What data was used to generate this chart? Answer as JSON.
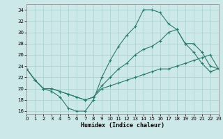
{
  "bg_color": "#cce8e8",
  "grid_color": "#aacfcf",
  "line_color": "#2d7a6e",
  "xlim": [
    0,
    23
  ],
  "ylim": [
    15.5,
    35
  ],
  "yticks": [
    16,
    18,
    20,
    22,
    24,
    26,
    28,
    30,
    32,
    34
  ],
  "xticks": [
    0,
    1,
    2,
    3,
    4,
    5,
    6,
    7,
    8,
    9,
    10,
    11,
    12,
    13,
    14,
    15,
    16,
    17,
    18,
    19,
    20,
    21,
    22,
    23
  ],
  "xlabel": "Humidex (Indice chaleur)",
  "curve1_x": [
    0,
    1,
    2,
    3,
    4,
    5,
    6,
    7,
    8,
    9,
    10,
    11,
    12,
    13,
    14,
    15,
    16,
    17,
    18,
    19,
    20,
    21,
    22,
    23
  ],
  "curve1_y": [
    23.5,
    21.5,
    20.0,
    19.5,
    18.5,
    16.5,
    16.0,
    16.0,
    18.0,
    22.0,
    25.0,
    27.5,
    29.5,
    31.0,
    34.0,
    34.0,
    33.5,
    31.5,
    30.5,
    28.0,
    26.5,
    24.5,
    23.0,
    23.5
  ],
  "curve2_x": [
    0,
    1,
    2,
    3,
    4,
    5,
    6,
    7,
    8,
    9,
    10,
    11,
    12,
    13,
    14,
    15,
    16,
    17,
    18,
    19,
    20,
    21,
    22,
    23
  ],
  "curve2_y": [
    23.5,
    21.5,
    20.0,
    20.0,
    19.5,
    19.0,
    18.5,
    18.0,
    18.5,
    20.5,
    22.0,
    23.5,
    24.5,
    26.0,
    27.0,
    27.5,
    28.5,
    30.0,
    30.5,
    28.0,
    28.0,
    26.5,
    24.0,
    23.5
  ],
  "curve3_x": [
    0,
    1,
    2,
    3,
    4,
    5,
    6,
    7,
    8,
    9,
    10,
    11,
    12,
    13,
    14,
    15,
    16,
    17,
    18,
    19,
    20,
    21,
    22,
    23
  ],
  "curve3_y": [
    23.5,
    21.5,
    20.0,
    20.0,
    19.5,
    19.0,
    18.5,
    18.0,
    18.5,
    20.0,
    20.5,
    21.0,
    21.5,
    22.0,
    22.5,
    23.0,
    23.5,
    23.5,
    24.0,
    24.5,
    25.0,
    25.5,
    26.0,
    23.5
  ]
}
